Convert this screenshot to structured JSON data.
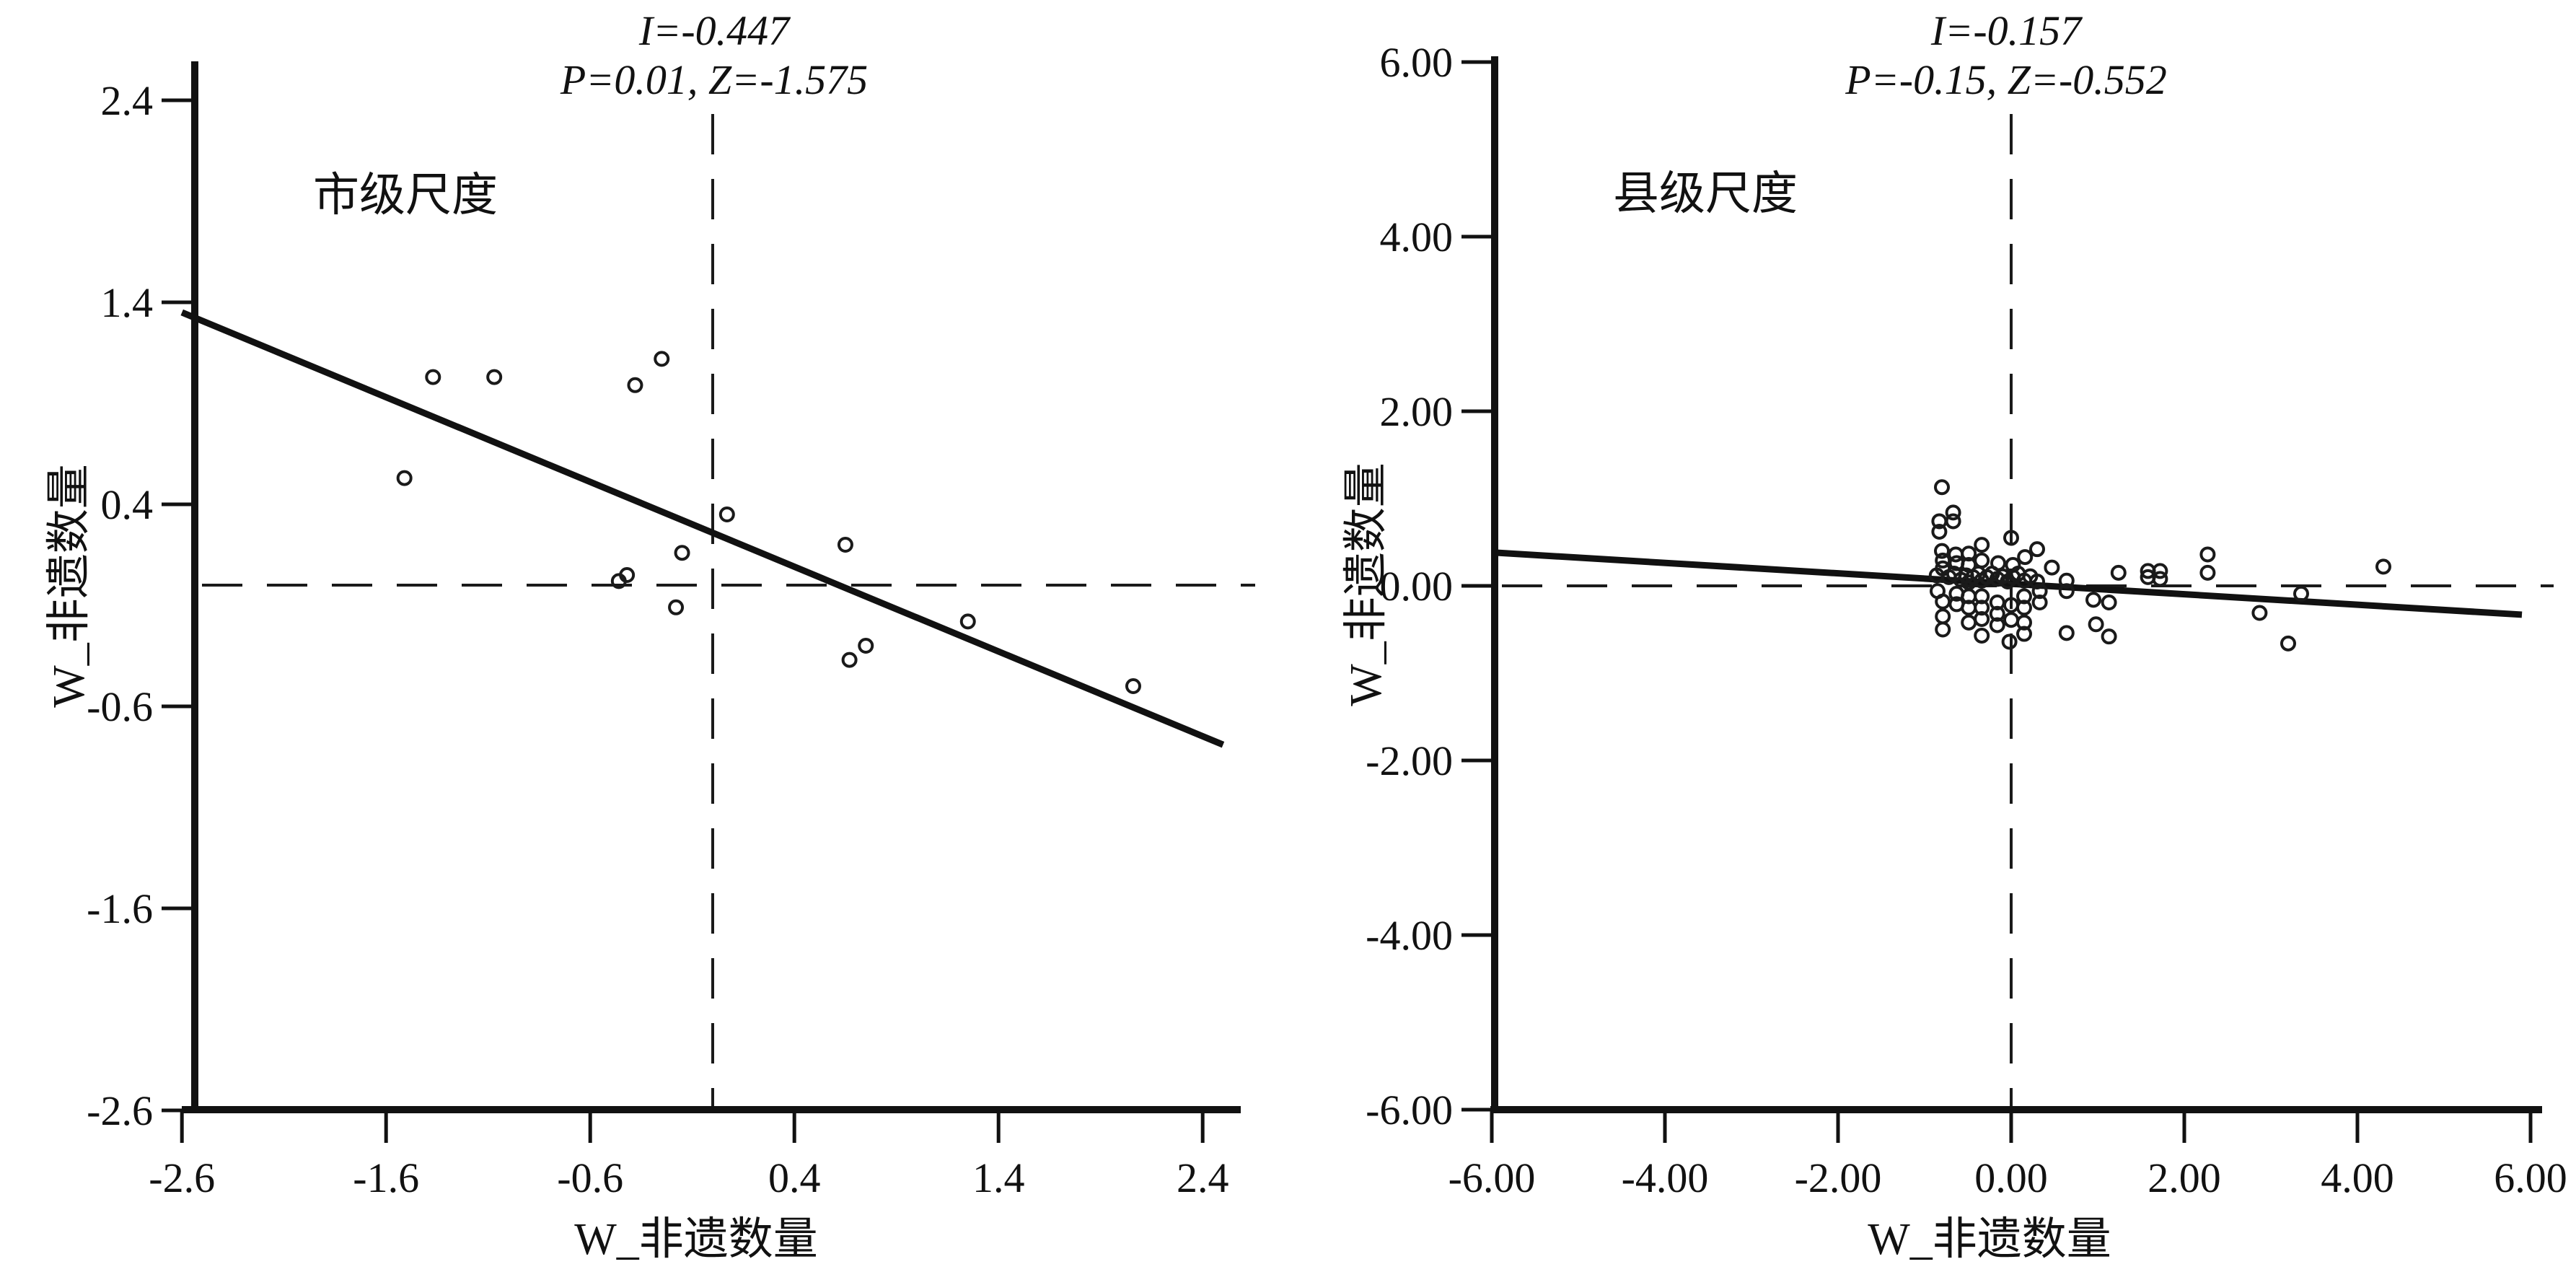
{
  "figure": {
    "background": "#ffffff",
    "ink_color": "#111111",
    "marker": "open-circle",
    "description_left": "Moran scatter plot, city scale",
    "description_right": "Moran scatter plot, county scale"
  },
  "chart_data": [
    {
      "type": "scatter",
      "region_label": "市级尺度",
      "title_lines": [
        "I=-0.447",
        "P=0.01, Z=-1.575"
      ],
      "stats": {
        "morans_I": "-0.447",
        "P": "0.01",
        "Z": "-1.575"
      },
      "xlabel": "W_非遗数量",
      "ylabel": "W_非遗数量",
      "xlim": [
        -2.6,
        2.58
      ],
      "ylim": [
        -2.6,
        2.6
      ],
      "grid": false,
      "legend": null,
      "xticks": {
        "values": [
          -2.6,
          -1.6,
          -0.6,
          0.4,
          1.4,
          2.4
        ],
        "labels": [
          "-2.6",
          "-1.6",
          "-0.6",
          "0.4",
          "1.4",
          "2.4"
        ]
      },
      "yticks": {
        "values": [
          2.4,
          1.4,
          0.4,
          -0.6,
          -1.6,
          -2.6
        ],
        "labels": [
          "2.4",
          "1.4",
          "0.4",
          "-0.6",
          "-1.6",
          "-2.6"
        ]
      },
      "reference_lines": {
        "vertical_x": 0,
        "horizontal_y": 0,
        "style": "dashed"
      },
      "regression_line": {
        "x1": -2.6,
        "y1": 1.35,
        "x2": 2.5,
        "y2": -0.79
      },
      "points": [
        [
          -1.51,
          0.53
        ],
        [
          -1.37,
          1.03
        ],
        [
          -1.07,
          1.03
        ],
        [
          -0.38,
          0.99
        ],
        [
          -0.25,
          1.12
        ],
        [
          -0.46,
          0.02
        ],
        [
          -0.42,
          0.05
        ],
        [
          -0.15,
          0.16
        ],
        [
          -0.18,
          -0.11
        ],
        [
          0.07,
          0.35
        ],
        [
          0.65,
          0.2
        ],
        [
          0.75,
          -0.3
        ],
        [
          0.67,
          -0.37
        ],
        [
          1.25,
          -0.18
        ],
        [
          2.06,
          -0.5
        ]
      ]
    },
    {
      "type": "scatter",
      "region_label": "县级尺度",
      "title_lines": [
        "I=-0.157",
        "P=-0.15, Z=-0.552"
      ],
      "stats": {
        "morans_I": "-0.157",
        "P": "-0.15",
        "Z": "-0.552"
      },
      "xlabel": "W_非遗数量",
      "ylabel": "W_非遗数量",
      "xlim": [
        -6.0,
        6.0
      ],
      "ylim": [
        -6.0,
        6.0
      ],
      "grid": false,
      "legend": null,
      "xticks": {
        "values": [
          -6,
          -4,
          -2,
          0,
          2,
          4,
          6
        ],
        "labels": [
          "-6.00",
          "-4.00",
          "-2.00",
          "0.00",
          "2.00",
          "4.00",
          "6.00"
        ]
      },
      "yticks": {
        "values": [
          6,
          4,
          2,
          0,
          -2,
          -4,
          -6
        ],
        "labels": [
          "6.00",
          "4.00",
          "2.00",
          "0.00",
          "-2.00",
          "-4.00",
          "-6.00"
        ]
      },
      "reference_lines": {
        "vertical_x": 0,
        "horizontal_y": 0,
        "style": "dashed"
      },
      "regression_line": {
        "x1": -5.95,
        "y1": 0.38,
        "x2": 5.9,
        "y2": -0.33
      },
      "points": [
        [
          -0.8,
          1.13
        ],
        [
          -0.67,
          0.84
        ],
        [
          -0.67,
          0.74
        ],
        [
          -0.83,
          0.74
        ],
        [
          -0.83,
          0.62
        ],
        [
          0.0,
          0.55
        ],
        [
          -0.8,
          0.4
        ],
        [
          -0.34,
          0.47
        ],
        [
          -0.64,
          0.36
        ],
        [
          -0.49,
          0.37
        ],
        [
          -0.34,
          0.29
        ],
        [
          -0.15,
          0.26
        ],
        [
          0.16,
          0.33
        ],
        [
          0.02,
          0.24
        ],
        [
          0.47,
          0.21
        ],
        [
          -0.79,
          0.29
        ],
        [
          -0.79,
          0.2
        ],
        [
          -0.63,
          0.26
        ],
        [
          -0.49,
          0.24
        ],
        [
          0.3,
          0.42
        ],
        [
          -0.86,
          0.12
        ],
        [
          -0.72,
          0.1
        ],
        [
          -0.66,
          0.14
        ],
        [
          -0.58,
          0.07
        ],
        [
          -0.52,
          0.12
        ],
        [
          -0.49,
          0.04
        ],
        [
          -0.44,
          0.1
        ],
        [
          -0.38,
          0.14
        ],
        [
          -0.34,
          0.06
        ],
        [
          -0.28,
          0.1
        ],
        [
          -0.22,
          0.14
        ],
        [
          -0.16,
          0.08
        ],
        [
          -0.1,
          0.11
        ],
        [
          -0.04,
          0.05
        ],
        [
          0.02,
          0.1
        ],
        [
          0.08,
          0.14
        ],
        [
          0.15,
          0.06
        ],
        [
          0.22,
          0.11
        ],
        [
          0.3,
          0.05
        ],
        [
          0.64,
          0.06
        ],
        [
          1.24,
          0.15
        ],
        [
          1.58,
          0.17
        ],
        [
          1.58,
          0.1
        ],
        [
          1.72,
          0.17
        ],
        [
          1.72,
          0.08
        ],
        [
          2.27,
          0.36
        ],
        [
          2.27,
          0.15
        ],
        [
          -0.85,
          -0.06
        ],
        [
          -0.79,
          -0.18
        ],
        [
          -0.79,
          -0.35
        ],
        [
          -0.79,
          -0.5
        ],
        [
          -0.63,
          -0.09
        ],
        [
          -0.63,
          -0.21
        ],
        [
          -0.49,
          -0.12
        ],
        [
          -0.49,
          -0.25
        ],
        [
          -0.49,
          -0.42
        ],
        [
          -0.34,
          -0.12
        ],
        [
          -0.34,
          -0.25
        ],
        [
          -0.34,
          -0.38
        ],
        [
          -0.34,
          -0.57
        ],
        [
          -0.16,
          -0.19
        ],
        [
          -0.16,
          -0.32
        ],
        [
          -0.16,
          -0.45
        ],
        [
          0.0,
          -0.22
        ],
        [
          0.0,
          -0.39
        ],
        [
          -0.02,
          -0.64
        ],
        [
          0.15,
          -0.12
        ],
        [
          0.15,
          -0.25
        ],
        [
          0.15,
          -0.42
        ],
        [
          0.15,
          -0.55
        ],
        [
          0.33,
          -0.06
        ],
        [
          0.33,
          -0.19
        ],
        [
          0.64,
          -0.06
        ],
        [
          0.64,
          -0.54
        ],
        [
          0.95,
          -0.16
        ],
        [
          0.98,
          -0.44
        ],
        [
          1.13,
          -0.19
        ],
        [
          1.13,
          -0.58
        ],
        [
          2.87,
          -0.31
        ],
        [
          3.35,
          -0.09
        ],
        [
          3.2,
          -0.66
        ],
        [
          4.3,
          0.22
        ]
      ]
    }
  ]
}
